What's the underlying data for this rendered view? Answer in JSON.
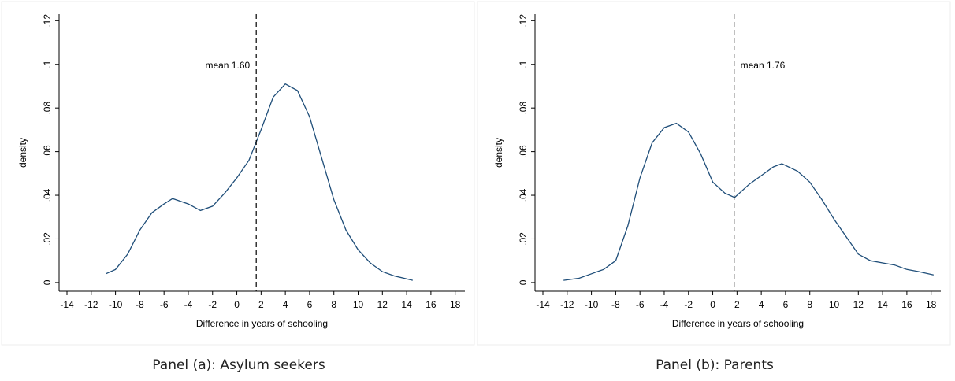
{
  "chart_data": [
    {
      "type": "line",
      "y_label": "density",
      "x_label": "Difference in years of schooling",
      "caption": "Panel (a): Asylum seekers",
      "color": "#1f4e79",
      "x": [
        -10.8,
        -10,
        -9,
        -8,
        -7,
        -6,
        -5.3,
        -4,
        -3,
        -2,
        -1,
        0,
        1,
        2,
        3,
        4,
        5,
        6,
        7,
        8,
        9,
        10,
        11,
        12,
        13,
        14.5
      ],
      "values": [
        0.004,
        0.006,
        0.013,
        0.024,
        0.032,
        0.036,
        0.0385,
        0.036,
        0.033,
        0.035,
        0.041,
        0.048,
        0.056,
        0.07,
        0.085,
        0.091,
        0.088,
        0.076,
        0.057,
        0.038,
        0.024,
        0.015,
        0.009,
        0.005,
        0.003,
        0.001
      ],
      "mean_line": {
        "value": 1.6,
        "label": "mean 1.60"
      },
      "label_position": "left",
      "xlim": [
        -14.65,
        18.8
      ],
      "ylim": [
        -0.004,
        0.123
      ],
      "xticks": [
        -14,
        -12,
        -10,
        -8,
        -6,
        -4,
        -2,
        0,
        2,
        4,
        6,
        8,
        10,
        12,
        14,
        16,
        18
      ],
      "yticks": [
        0,
        {
          "value": 0.02,
          "label": ".02"
        },
        {
          "value": 0.04,
          "label": ".04"
        },
        {
          "value": 0.06,
          "label": ".06"
        },
        {
          "value": 0.08,
          "label": ".08"
        },
        {
          "value": 0.1,
          "label": ".1"
        },
        {
          "value": 0.12,
          "label": ".12"
        }
      ]
    },
    {
      "type": "line",
      "y_label": "density",
      "x_label": "Difference in years of schooling",
      "caption": "Panel (b): Parents",
      "color": "#1f4e79",
      "x": [
        -12.3,
        -11,
        -10,
        -9,
        -8,
        -7,
        -6,
        -5,
        -4,
        -3,
        -2,
        -1,
        0,
        1,
        1.8,
        3,
        4,
        5,
        5.7,
        7,
        8,
        9,
        10,
        11,
        12,
        13,
        14,
        15,
        16,
        17,
        18.2
      ],
      "values": [
        0.001,
        0.002,
        0.004,
        0.006,
        0.01,
        0.026,
        0.048,
        0.064,
        0.071,
        0.073,
        0.069,
        0.059,
        0.046,
        0.041,
        0.039,
        0.045,
        0.049,
        0.053,
        0.0545,
        0.051,
        0.046,
        0.038,
        0.029,
        0.021,
        0.013,
        0.01,
        0.009,
        0.008,
        0.006,
        0.005,
        0.0035
      ],
      "mean_line": {
        "value": 1.76,
        "label": "mean 1.76"
      },
      "label_position": "right",
      "xlim": [
        -14.65,
        18.8
      ],
      "ylim": [
        -0.004,
        0.123
      ],
      "xticks": [
        -14,
        -12,
        -10,
        -8,
        -6,
        -4,
        -2,
        0,
        2,
        4,
        6,
        8,
        10,
        12,
        14,
        16,
        18
      ],
      "yticks": [
        0,
        {
          "value": 0.02,
          "label": ".02"
        },
        {
          "value": 0.04,
          "label": ".04"
        },
        {
          "value": 0.06,
          "label": ".06"
        },
        {
          "value": 0.08,
          "label": ".08"
        },
        {
          "value": 0.1,
          "label": ".1"
        },
        {
          "value": 0.12,
          "label": ".12"
        }
      ]
    }
  ]
}
